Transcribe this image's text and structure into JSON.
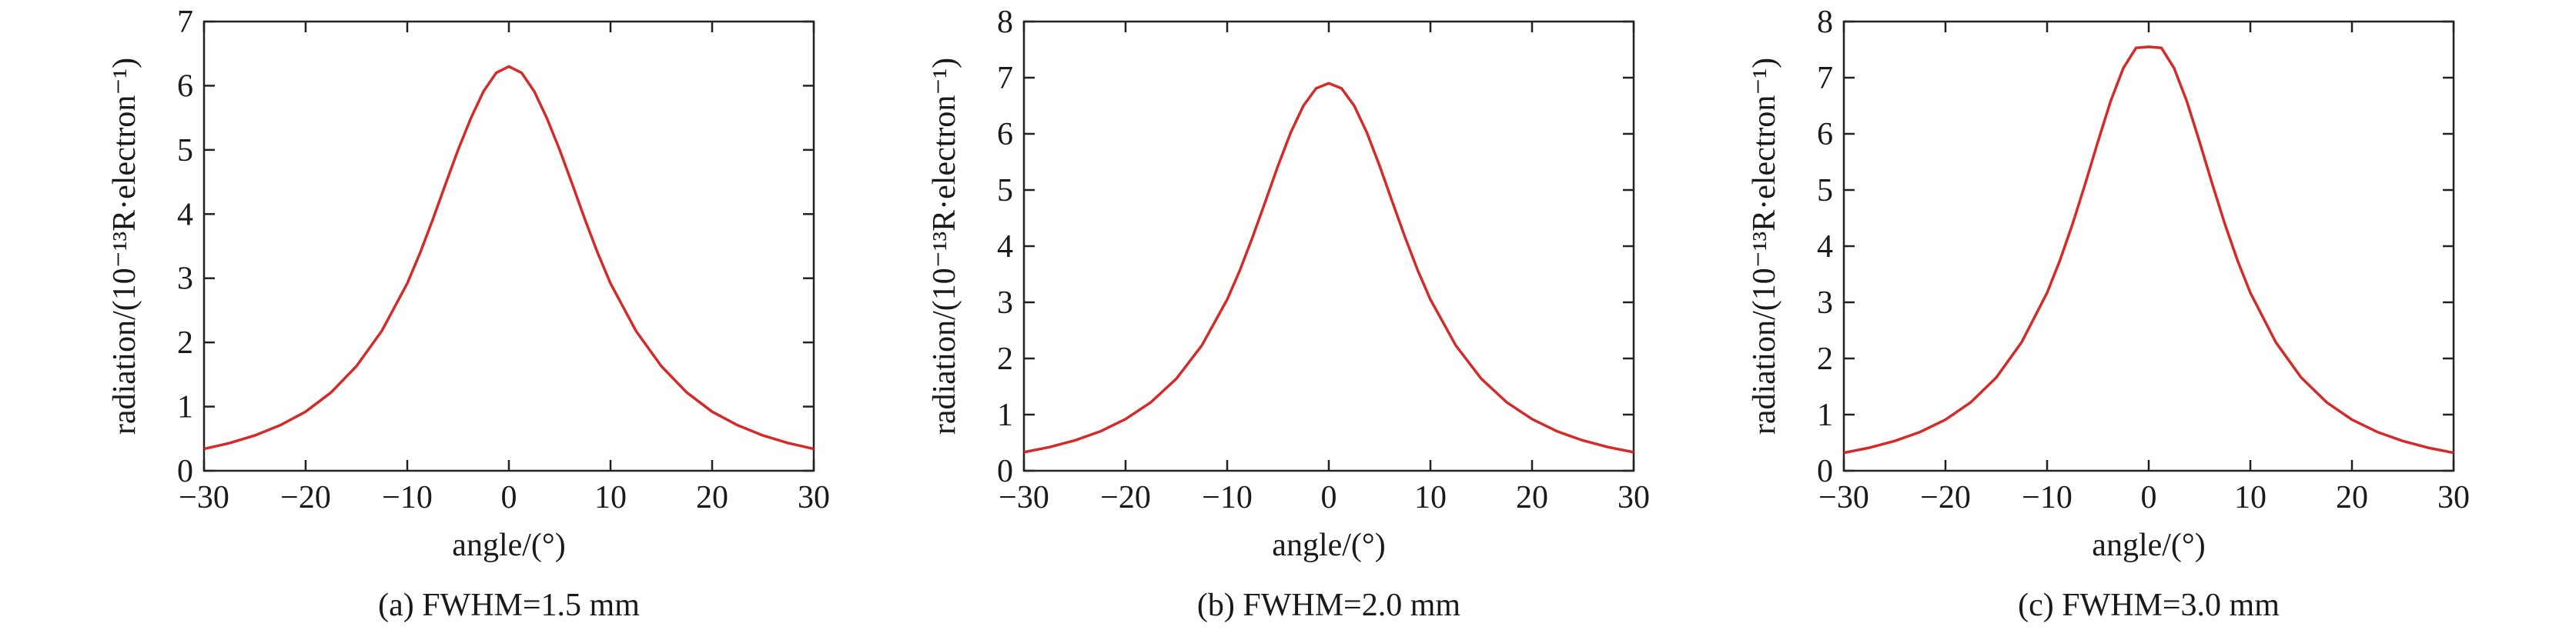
{
  "chart_data": [
    {
      "type": "line",
      "caption": "(a) FWHM=1.5 mm",
      "xlabel": "angle/(°)",
      "ylabel": "radiation/(10⁻¹³R·electron⁻¹)",
      "xlim": [
        -30,
        30
      ],
      "ylim": [
        0,
        7
      ],
      "xticks": [
        -30,
        -20,
        -10,
        0,
        10,
        20,
        30
      ],
      "yticks": [
        0,
        1,
        2,
        3,
        4,
        5,
        6,
        7
      ],
      "xtick_labels": [
        "−30",
        "−20",
        "−10",
        "0",
        "10",
        "20",
        "30"
      ],
      "ytick_labels": [
        "0",
        "1",
        "2",
        "3",
        "4",
        "5",
        "6",
        "7"
      ],
      "color": "#d42a2a",
      "x": [
        -30,
        -27.5,
        -25,
        -22.5,
        -20,
        -17.5,
        -15,
        -12.5,
        -10,
        -8.75,
        -7.5,
        -6.25,
        -5,
        -3.75,
        -2.5,
        -1.25,
        0,
        1.25,
        2.5,
        3.75,
        5,
        6.25,
        7.5,
        8.75,
        10,
        12.5,
        15,
        17.5,
        20,
        22.5,
        25,
        27.5,
        30
      ],
      "y": [
        0.34,
        0.43,
        0.55,
        0.71,
        0.92,
        1.22,
        1.63,
        2.18,
        2.92,
        3.39,
        3.91,
        4.46,
        5.0,
        5.49,
        5.91,
        6.2,
        6.3,
        6.2,
        5.91,
        5.49,
        5.0,
        4.46,
        3.91,
        3.39,
        2.92,
        2.18,
        1.63,
        1.22,
        0.92,
        0.71,
        0.55,
        0.43,
        0.34
      ]
    },
    {
      "type": "line",
      "caption": "(b) FWHM=2.0 mm",
      "xlabel": "angle/(°)",
      "ylabel": "radiation/(10⁻¹³R·electron⁻¹)",
      "xlim": [
        -30,
        30
      ],
      "ylim": [
        0,
        8
      ],
      "xticks": [
        -30,
        -20,
        -10,
        0,
        10,
        20,
        30
      ],
      "yticks": [
        0,
        1,
        2,
        3,
        4,
        5,
        6,
        7,
        8
      ],
      "xtick_labels": [
        "−30",
        "−20",
        "−10",
        "0",
        "10",
        "20",
        "30"
      ],
      "ytick_labels": [
        "0",
        "1",
        "2",
        "3",
        "4",
        "5",
        "6",
        "7",
        "8"
      ],
      "color": "#d42a2a",
      "x": [
        -30,
        -27.5,
        -25,
        -22.5,
        -20,
        -17.5,
        -15,
        -12.5,
        -10,
        -8.75,
        -7.5,
        -6.25,
        -5,
        -3.75,
        -2.5,
        -1.25,
        0,
        1.25,
        2.5,
        3.75,
        5,
        6.25,
        7.5,
        8.75,
        10,
        12.5,
        15,
        17.5,
        20,
        22.5,
        25,
        27.5,
        30
      ],
      "y": [
        0.33,
        0.42,
        0.54,
        0.7,
        0.92,
        1.22,
        1.64,
        2.23,
        3.05,
        3.57,
        4.16,
        4.79,
        5.43,
        6.02,
        6.5,
        6.81,
        6.9,
        6.81,
        6.5,
        6.02,
        5.43,
        4.79,
        4.16,
        3.57,
        3.05,
        2.23,
        1.64,
        1.22,
        0.92,
        0.7,
        0.54,
        0.42,
        0.33
      ]
    },
    {
      "type": "line",
      "caption": "(c) FWHM=3.0 mm",
      "xlabel": "angle/(°)",
      "ylabel": "radiation/(10⁻¹³R·electron⁻¹)",
      "xlim": [
        -30,
        30
      ],
      "ylim": [
        0,
        8
      ],
      "xticks": [
        -30,
        -20,
        -10,
        0,
        10,
        20,
        30
      ],
      "yticks": [
        0,
        1,
        2,
        3,
        4,
        5,
        6,
        7,
        8
      ],
      "xtick_labels": [
        "−30",
        "−20",
        "−10",
        "0",
        "10",
        "20",
        "30"
      ],
      "ytick_labels": [
        "0",
        "1",
        "2",
        "3",
        "4",
        "5",
        "6",
        "7",
        "8"
      ],
      "color": "#d42a2a",
      "x": [
        -30,
        -27.5,
        -25,
        -22.5,
        -20,
        -17.5,
        -15,
        -12.5,
        -10,
        -8.75,
        -7.5,
        -6.25,
        -5,
        -3.75,
        -2.5,
        -1.25,
        0,
        1.25,
        2.5,
        3.75,
        5,
        6.25,
        7.5,
        8.75,
        10,
        12.5,
        15,
        17.5,
        20,
        22.5,
        25,
        27.5,
        30
      ],
      "y": [
        0.32,
        0.41,
        0.53,
        0.69,
        0.91,
        1.22,
        1.66,
        2.29,
        3.17,
        3.74,
        4.39,
        5.11,
        5.86,
        6.58,
        7.17,
        7.53,
        7.55,
        7.53,
        7.17,
        6.58,
        5.86,
        5.11,
        4.39,
        3.74,
        3.17,
        2.29,
        1.66,
        1.22,
        0.91,
        0.69,
        0.53,
        0.41,
        0.32
      ]
    }
  ]
}
